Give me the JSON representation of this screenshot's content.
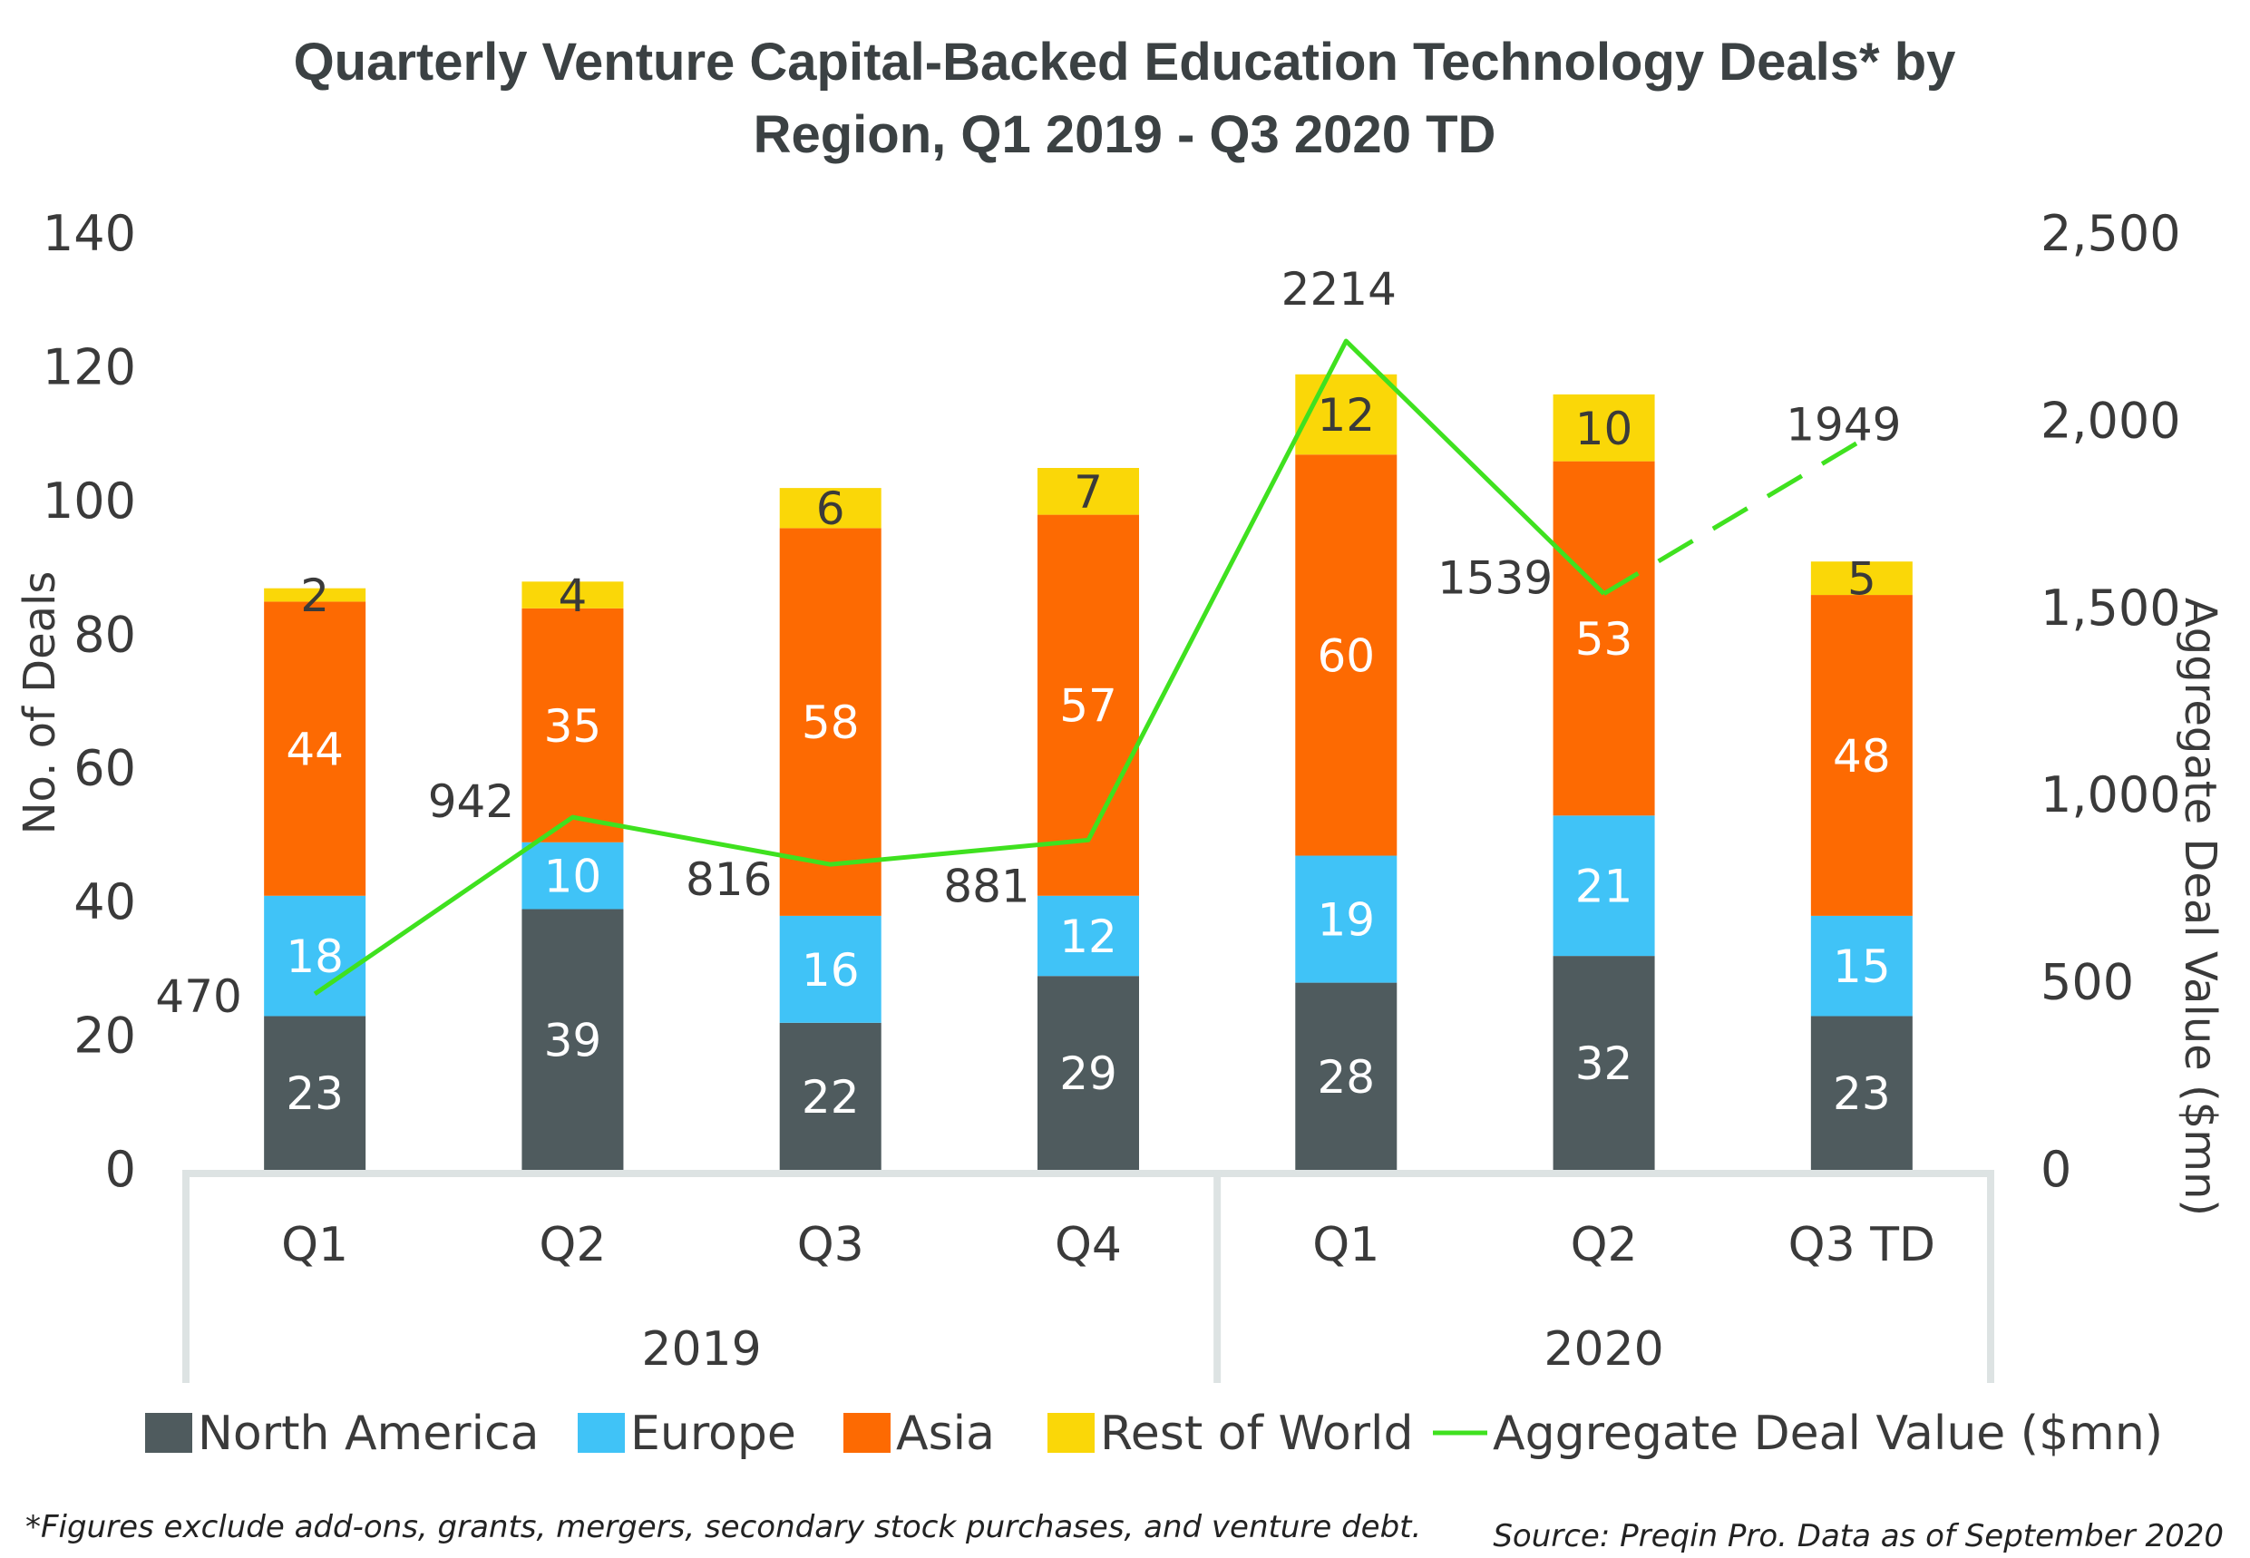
{
  "chart_data": {
    "type": "bar",
    "stacked": true,
    "title_lines": [
      "Quarterly Venture Capital-Backed Education Technology Deals* by",
      "Region, Q1 2019 - Q3 2020 TD"
    ],
    "ylabel": "No. of Deals",
    "y2label": "Aggregate Deal Value ($mn)",
    "ylim": [
      0,
      140
    ],
    "y2lim": [
      0,
      2500
    ],
    "yticks": [
      "0",
      "20",
      "40",
      "60",
      "80",
      "100",
      "120",
      "140"
    ],
    "y2ticks": [
      "0",
      "500",
      "1,000",
      "1,500",
      "2,000",
      "2,500"
    ],
    "categories": [
      "Q1",
      "Q2",
      "Q3",
      "Q4",
      "Q1",
      "Q2",
      "Q3 TD"
    ],
    "groups": [
      {
        "label": "2019",
        "count": 4
      },
      {
        "label": "2020",
        "count": 3
      }
    ],
    "series": [
      {
        "name": "North America",
        "color": "#4f5b5e",
        "label_color": "#ffffff",
        "values": [
          23,
          39,
          22,
          29,
          28,
          32,
          23
        ]
      },
      {
        "name": "Europe",
        "color": "#40c3f7",
        "label_color": "#ffffff",
        "values": [
          18,
          10,
          16,
          12,
          19,
          21,
          15
        ]
      },
      {
        "name": "Asia",
        "color": "#fd6a02",
        "label_color": "#ffffff",
        "values": [
          44,
          35,
          58,
          57,
          60,
          53,
          48
        ]
      },
      {
        "name": "Rest of World",
        "color": "#fad708",
        "label_color": "#3a3a3a",
        "values": [
          2,
          4,
          6,
          7,
          12,
          10,
          5
        ]
      }
    ],
    "line": {
      "name": "Aggregate Deal Value ($mn)",
      "color": "#3fe11f",
      "values": [
        470,
        942,
        816,
        881,
        2214,
        1539,
        1949
      ],
      "labels": [
        "470",
        "942",
        "816",
        "881",
        "2214",
        "1539",
        "1949"
      ],
      "dashed_last_segment": true
    }
  },
  "footnote": "*Figures exclude add-ons, grants, mergers, secondary stock purchases, and venture debt.",
  "source": "Source: Preqin Pro. Data as of September 2020"
}
